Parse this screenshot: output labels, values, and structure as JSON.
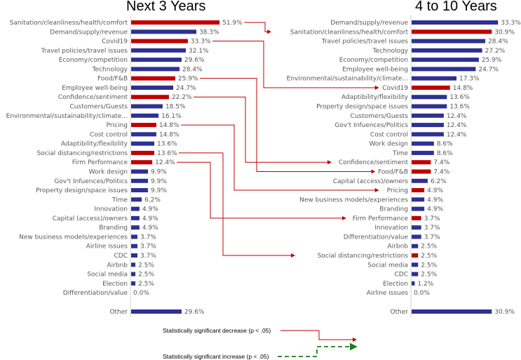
{
  "chart_data": [
    {
      "type": "bar",
      "orientation": "horizontal",
      "title": "Next 3 Years",
      "categories": [
        "Sanitation/cleanliness/health/comfort",
        "Demand/supply/revenue",
        "Covid19",
        "Travel policies/travel issues",
        "Economy/competition",
        "Technology",
        "Food/F&B",
        "Employee well-being",
        "Confidence/sentiment",
        "Customers/Guests",
        "Environmental/sustainability/climate...",
        "Pricing",
        "Cost control",
        "Adaptibility/flexibility",
        "Social distancing/restrictions",
        "Firm Performance",
        "Work design",
        "Gov't Infuences/Politics",
        "Property design/space issues",
        "Time",
        "Innovation",
        "Capital (access)/owners",
        "Branding",
        "New business models/experiences",
        "Airline issues",
        "CDC",
        "Airbnb",
        "Social media",
        "Election",
        "Differentiation/value",
        "Other"
      ],
      "values": [
        51.9,
        38.3,
        33.3,
        32.1,
        29.6,
        28.4,
        25.9,
        24.7,
        22.2,
        18.5,
        16.1,
        14.8,
        14.8,
        13.6,
        13.6,
        12.4,
        9.9,
        9.9,
        9.9,
        6.2,
        4.9,
        4.9,
        4.9,
        3.7,
        3.7,
        3.7,
        2.5,
        2.5,
        2.5,
        0.0,
        29.6
      ],
      "value_labels": [
        "51.9%",
        "38.3%",
        "33.3%",
        "32.1%",
        "29.6%",
        "28.4%",
        "25.9%",
        "24.7%",
        "22.2%",
        "18.5%",
        "16.1%",
        "14.8%",
        "14.8%",
        "13.6%",
        "13.6%",
        "12.4%",
        "9.9%",
        "9.9%",
        "9.9%",
        "6.2%",
        "4.9%",
        "4.9%",
        "4.9%",
        "3.7%",
        "3.7%",
        "3.7%",
        "2.5%",
        "2.5%",
        "2.5%",
        "0.0%",
        "29.6%"
      ],
      "highlighted": [
        "Sanitation/cleanliness/health/comfort",
        "Covid19",
        "Food/F&B",
        "Confidence/sentiment",
        "Pricing",
        "Social distancing/restrictions",
        "Firm Performance"
      ],
      "unit": "%"
    },
    {
      "type": "bar",
      "orientation": "horizontal",
      "title": "4 to 10 Years",
      "categories": [
        "Demand/supply/revenue",
        "Sanitation/cleanliness/health/comfort",
        "Travel policies/travel issues",
        "Technology",
        "Economy/competition",
        "Employee well-being",
        "Environmental/sustainability/climate...",
        "Covid19",
        "Adaptibility/flexibility",
        "Property design/space issues",
        "Customers/Guests",
        "Gov't Infuences/Politics",
        "Cost control",
        "Work design",
        "Time",
        "Confidence/sentiment",
        "Food/F&B",
        "Capital (access)/owners",
        "Pricing",
        "New business models/experiences",
        "Branding",
        "Firm Performance",
        "Innovation",
        "Differentiation/value",
        "Airbnb",
        "Social distancing/restrictions",
        "Social media",
        "CDC",
        "Election",
        "Airline issues",
        "Other"
      ],
      "values": [
        33.3,
        30.9,
        28.4,
        27.2,
        25.9,
        24.7,
        17.3,
        14.8,
        13.6,
        13.6,
        12.4,
        12.4,
        12.4,
        8.6,
        8.6,
        7.4,
        7.4,
        6.2,
        4.9,
        4.9,
        4.9,
        3.7,
        3.7,
        3.7,
        2.5,
        2.5,
        2.5,
        2.5,
        1.2,
        0.0,
        30.9
      ],
      "value_labels": [
        "33.3%",
        "30.9%",
        "28.4%",
        "27.2%",
        "25.9%",
        "24.7%",
        "17.3%",
        "14.8%",
        "13.6%",
        "13.6%",
        "12.4%",
        "12.4%",
        "12.4%",
        "8.6%",
        "8.6%",
        "7.4%",
        "7.4%",
        "6.2%",
        "4.9%",
        "4.9%",
        "4.9%",
        "3.7%",
        "3.7%",
        "3.7%",
        "2.5%",
        "2.5%",
        "2.5%",
        "2.5%",
        "1.2%",
        "0.0%",
        "30.9%"
      ],
      "highlighted": [
        "Sanitation/cleanliness/health/comfort",
        "Covid19",
        "Food/F&B",
        "Confidence/sentiment",
        "Pricing",
        "Social distancing/restrictions",
        "Firm Performance"
      ],
      "unit": "%"
    }
  ],
  "significant_decreases": [
    "Sanitation/cleanliness/health/comfort",
    "Covid19",
    "Food/F&B",
    "Confidence/sentiment",
    "Pricing",
    "Firm Performance",
    "Social distancing/restrictions"
  ],
  "legend": {
    "decrease": "Statistically significant decrease (p < .05)",
    "increase": "Statistically significant increase (p < .05)"
  },
  "colors": {
    "bar": "#2e3192",
    "highlight": "#c00000",
    "increase": "#1a7f1a",
    "axis": "#d0d0d0"
  }
}
